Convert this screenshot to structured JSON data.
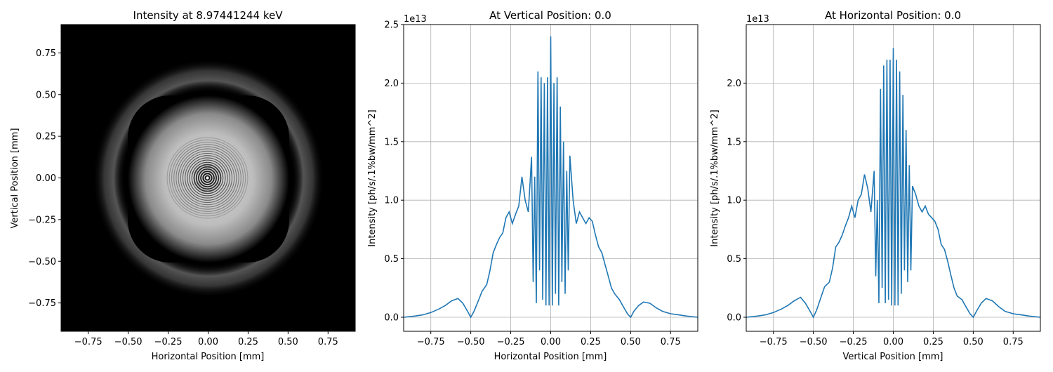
{
  "chart_data": [
    {
      "type": "heatmap",
      "title": "Intensity at 8.97441244 keV",
      "xlabel": "Horizontal Position [mm]",
      "ylabel": "Vertical Position [mm]",
      "xlim": [
        -0.92,
        0.92
      ],
      "ylim": [
        -0.92,
        0.92
      ],
      "xticks": [
        "−0.75",
        "−0.50",
        "−0.25",
        "0.00",
        "0.25",
        "0.50",
        "0.75"
      ],
      "yticks": [
        "−0.75",
        "−0.50",
        "−0.25",
        "0.00",
        "0.25",
        "0.50",
        "0.75"
      ],
      "colormap": "gray",
      "grid": false
    },
    {
      "type": "line",
      "title": "At Vertical Position: 0.0",
      "xlabel": "Horizontal Position [mm]",
      "ylabel": "Intensity [ph/s/.1%bw/mm^2]",
      "offset_text": "1e13",
      "xlim": [
        -0.92,
        0.92
      ],
      "ylim": [
        -0.12,
        2.5
      ],
      "xticks": [
        "−0.75",
        "−0.50",
        "−0.25",
        "0.00",
        "0.25",
        "0.50",
        "0.75"
      ],
      "yticks": [
        "0.0",
        "0.5",
        "1.0",
        "1.5",
        "2.0",
        "2.5"
      ],
      "grid": true,
      "line_color": "#1f77b4",
      "x": [
        -0.92,
        -0.85,
        -0.8,
        -0.75,
        -0.7,
        -0.66,
        -0.62,
        -0.58,
        -0.55,
        -0.52,
        -0.5,
        -0.48,
        -0.45,
        -0.43,
        -0.4,
        -0.38,
        -0.36,
        -0.34,
        -0.32,
        -0.3,
        -0.28,
        -0.26,
        -0.24,
        -0.22,
        -0.2,
        -0.18,
        -0.16,
        -0.14,
        -0.12,
        -0.11,
        -0.1,
        -0.09,
        -0.08,
        -0.07,
        -0.06,
        -0.05,
        -0.04,
        -0.03,
        -0.02,
        -0.01,
        0.0,
        0.01,
        0.02,
        0.03,
        0.04,
        0.05,
        0.06,
        0.07,
        0.08,
        0.09,
        0.1,
        0.11,
        0.12,
        0.14,
        0.16,
        0.18,
        0.2,
        0.22,
        0.24,
        0.26,
        0.28,
        0.3,
        0.32,
        0.34,
        0.36,
        0.38,
        0.4,
        0.43,
        0.45,
        0.48,
        0.5,
        0.52,
        0.55,
        0.58,
        0.62,
        0.66,
        0.7,
        0.75,
        0.8,
        0.85,
        0.92
      ],
      "y": [
        0.0,
        0.01,
        0.02,
        0.04,
        0.07,
        0.1,
        0.14,
        0.16,
        0.12,
        0.05,
        0.0,
        0.05,
        0.15,
        0.22,
        0.28,
        0.4,
        0.55,
        0.62,
        0.68,
        0.72,
        0.85,
        0.9,
        0.8,
        0.88,
        0.95,
        1.2,
        1.0,
        0.9,
        1.37,
        0.3,
        1.2,
        0.12,
        2.1,
        0.4,
        2.05,
        0.15,
        2.0,
        0.1,
        2.05,
        0.1,
        2.4,
        0.1,
        2.0,
        0.2,
        2.05,
        0.1,
        1.8,
        0.3,
        1.5,
        0.2,
        1.25,
        0.4,
        1.38,
        1.0,
        0.8,
        0.9,
        0.85,
        0.8,
        0.85,
        0.82,
        0.7,
        0.6,
        0.55,
        0.45,
        0.35,
        0.25,
        0.2,
        0.15,
        0.1,
        0.03,
        0.0,
        0.05,
        0.1,
        0.13,
        0.12,
        0.08,
        0.05,
        0.03,
        0.02,
        0.01,
        0.0
      ]
    },
    {
      "type": "line",
      "title": "At Horizontal Position: 0.0",
      "xlabel": "Vertical Position [mm]",
      "ylabel": "Intensity [ph/s/.1%bw/mm^2]",
      "offset_text": "1e13",
      "xlim": [
        -0.92,
        0.92
      ],
      "ylim": [
        -0.12,
        2.5
      ],
      "xticks": [
        "−0.75",
        "−0.50",
        "−0.25",
        "0.00",
        "0.25",
        "0.50",
        "0.75"
      ],
      "yticks": [
        "0.0",
        "0.5",
        "1.0",
        "1.5",
        "2.0"
      ],
      "grid": true,
      "line_color": "#1f77b4",
      "x": [
        -0.92,
        -0.85,
        -0.8,
        -0.75,
        -0.7,
        -0.66,
        -0.62,
        -0.58,
        -0.55,
        -0.52,
        -0.5,
        -0.48,
        -0.45,
        -0.43,
        -0.4,
        -0.38,
        -0.36,
        -0.34,
        -0.32,
        -0.3,
        -0.28,
        -0.26,
        -0.24,
        -0.22,
        -0.2,
        -0.18,
        -0.16,
        -0.14,
        -0.12,
        -0.11,
        -0.1,
        -0.09,
        -0.08,
        -0.07,
        -0.06,
        -0.05,
        -0.04,
        -0.03,
        -0.02,
        -0.01,
        0.0,
        0.01,
        0.02,
        0.03,
        0.04,
        0.05,
        0.06,
        0.07,
        0.08,
        0.09,
        0.1,
        0.11,
        0.12,
        0.14,
        0.16,
        0.18,
        0.2,
        0.22,
        0.24,
        0.26,
        0.28,
        0.3,
        0.32,
        0.34,
        0.36,
        0.38,
        0.4,
        0.43,
        0.45,
        0.48,
        0.5,
        0.52,
        0.55,
        0.58,
        0.62,
        0.66,
        0.7,
        0.75,
        0.8,
        0.85,
        0.92
      ],
      "y": [
        0.0,
        0.01,
        0.02,
        0.04,
        0.07,
        0.1,
        0.14,
        0.17,
        0.12,
        0.05,
        0.0,
        0.06,
        0.18,
        0.26,
        0.3,
        0.42,
        0.6,
        0.64,
        0.7,
        0.78,
        0.85,
        0.95,
        0.85,
        1.0,
        1.05,
        1.22,
        1.1,
        0.9,
        1.25,
        0.35,
        1.0,
        0.12,
        1.95,
        0.25,
        2.15,
        0.12,
        2.2,
        0.15,
        2.2,
        0.1,
        2.3,
        0.1,
        2.2,
        0.1,
        2.1,
        0.2,
        1.9,
        0.4,
        1.6,
        0.3,
        1.3,
        0.4,
        1.12,
        1.05,
        0.95,
        0.9,
        0.95,
        0.88,
        0.85,
        0.82,
        0.75,
        0.62,
        0.58,
        0.48,
        0.36,
        0.25,
        0.18,
        0.15,
        0.1,
        0.03,
        0.0,
        0.05,
        0.12,
        0.16,
        0.14,
        0.09,
        0.05,
        0.03,
        0.02,
        0.01,
        0.0
      ]
    }
  ]
}
